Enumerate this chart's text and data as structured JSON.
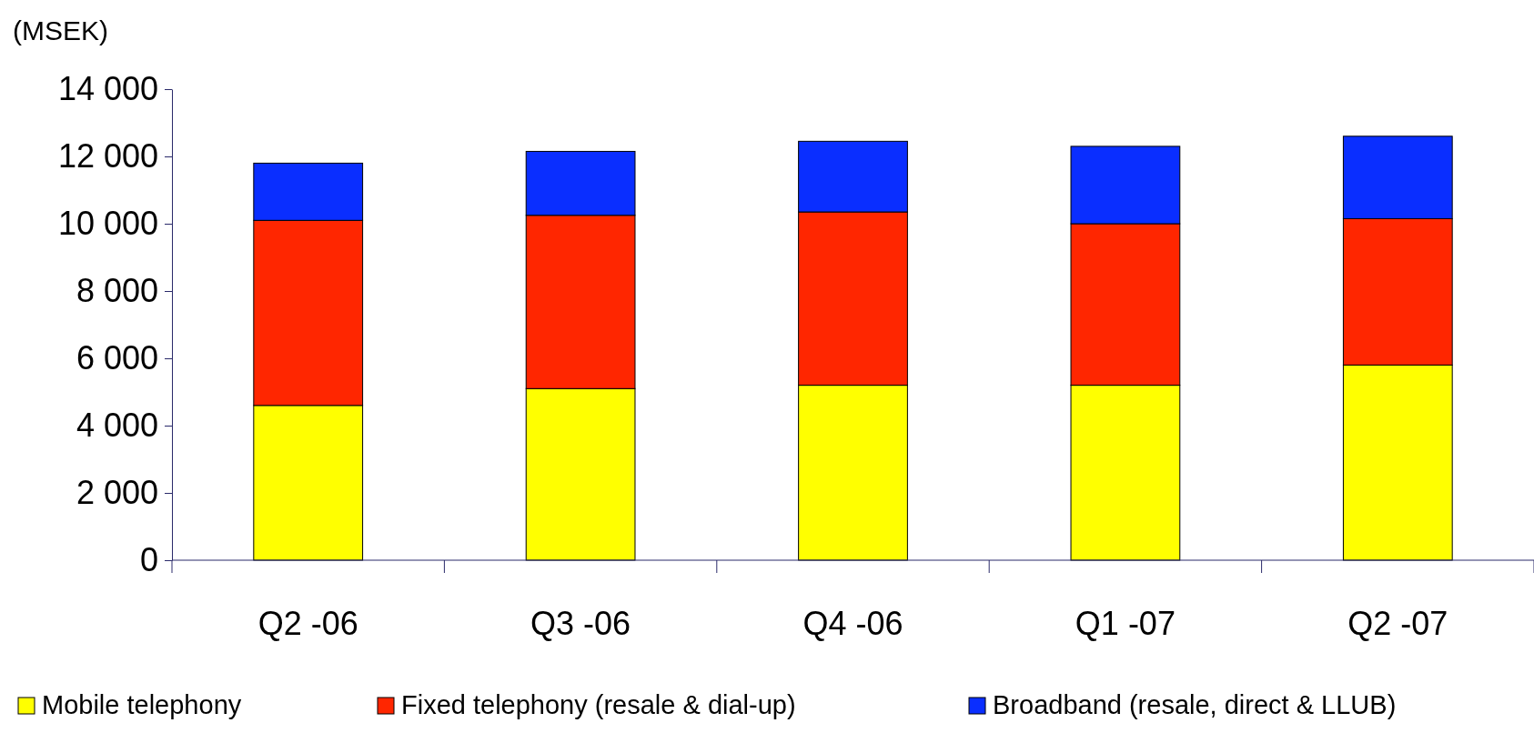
{
  "chart_data": {
    "type": "bar",
    "ylabel": "(MSEK)",
    "stacked": true,
    "legend": "bottom",
    "grid": false,
    "categories": [
      "Q2 -06",
      "Q3 -06",
      "Q4 -06",
      "Q1 -07",
      "Q2 -07"
    ],
    "ylim": [
      0,
      14000
    ],
    "yticks": [
      0,
      {
        "value": 2000,
        "label": "2 000"
      },
      {
        "value": 4000,
        "label": "4 000"
      },
      {
        "value": 6000,
        "label": "6 000"
      },
      {
        "value": 8000,
        "label": "8 000"
      },
      {
        "value": 10000,
        "label": "10 000"
      },
      {
        "value": 12000,
        "label": "12 000"
      },
      {
        "value": 14000,
        "label": "14 000"
      }
    ],
    "series": [
      {
        "name": "Mobile telephony",
        "color": "#ffff00",
        "values": [
          4600,
          5100,
          5200,
          5200,
          5800
        ]
      },
      {
        "name": "Fixed telephony (resale & dial-up)",
        "color": "#ff2600",
        "values": [
          5500,
          5150,
          5150,
          4800,
          4350
        ]
      },
      {
        "name": "Broadband (resale, direct & LLUB)",
        "color": "#0a2eff",
        "values": [
          1700,
          1900,
          2100,
          2300,
          2450
        ]
      }
    ]
  }
}
